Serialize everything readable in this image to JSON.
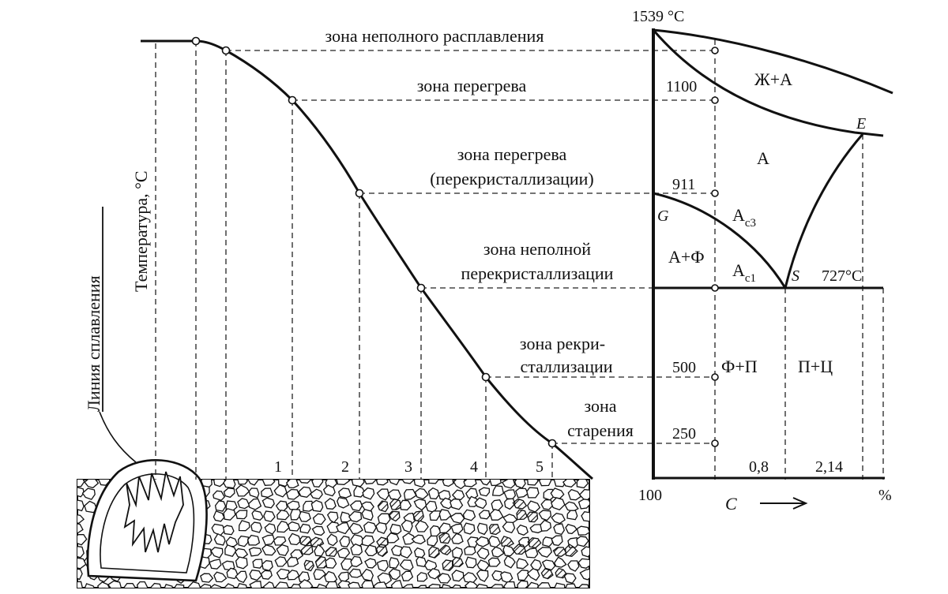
{
  "zones": {
    "partial_melting": "зона неполного расплавления",
    "overheating": "зона перегрева",
    "overheating_recryst_1": "зона перегрева",
    "overheating_recryst_2": "(перекристаллизации)",
    "partial_recryst_1": "зона неполной",
    "partial_recryst_2": "перекристаллизации",
    "recryst_1": "зона рекри-",
    "recryst_2": "сталлизации",
    "aging_1": "зона",
    "aging_2": "старения"
  },
  "axes": {
    "temperature_label": "Температура, °С",
    "fusion_line_label": "Линия сплавления"
  },
  "section_numbers": [
    "1",
    "2",
    "3",
    "4",
    "5"
  ],
  "phase_diagram": {
    "t_melt": "1539 °С",
    "t_1100": "1100",
    "t_911": "911",
    "t_500": "500",
    "t_250": "250",
    "t_727": "727°С",
    "pt_G": "G",
    "pt_E": "E",
    "pt_S": "S",
    "liquid_austenite": "Ж+А",
    "austenite": "А",
    "austenite_ferrite": "А+Ф",
    "ac3_main": "А",
    "ac3_sub": "c3",
    "ac1_main": "А",
    "ac1_sub": "c1",
    "ferrite_pearlite": "Ф+П",
    "pearlite_cementite": "П+Ц",
    "c_08": "0,8",
    "c_214": "2,14",
    "x_100": "100",
    "x_axis": "С",
    "percent": "%"
  }
}
